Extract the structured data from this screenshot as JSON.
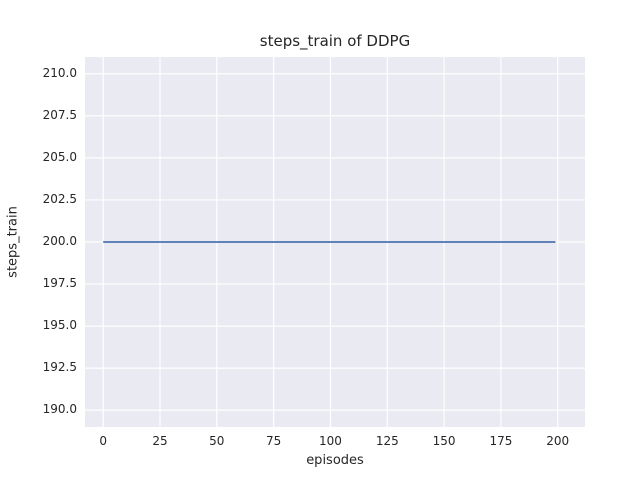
{
  "figure": {
    "title": "steps_train of DDPG",
    "xlabel": "episodes",
    "ylabel": "steps_train"
  },
  "chart_data": {
    "type": "line",
    "title": "steps_train of DDPG",
    "xlabel": "episodes",
    "ylabel": "steps_train",
    "style": "seaborn-darkgrid",
    "grid": true,
    "legend": false,
    "xlim": [
      -8,
      212
    ],
    "ylim": [
      189,
      211
    ],
    "x_ticks": [
      "0",
      "25",
      "50",
      "75",
      "100",
      "125",
      "150",
      "175",
      "200"
    ],
    "y_ticks": [
      "190.0",
      "192.5",
      "195.0",
      "197.5",
      "200.0",
      "202.5",
      "205.0",
      "207.5",
      "210.0"
    ],
    "series": [
      {
        "name": "steps_train",
        "color": "#4C72B0",
        "constant_value": 200,
        "n_points": 200,
        "x": [
          0,
          199
        ],
        "y": [
          200,
          200
        ]
      }
    ],
    "colors": {
      "figure_background": "#FFFFFF",
      "plot_background": "#EAEAF2",
      "gridline": "#FFFFFF",
      "line": "#4C72B0",
      "text": "#262626"
    }
  }
}
